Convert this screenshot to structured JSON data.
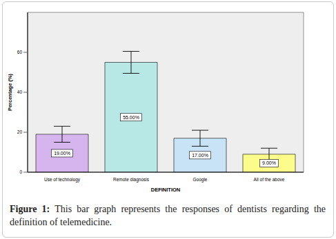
{
  "chart_data": {
    "type": "bar",
    "categories": [
      "Use of technology",
      "Remote diagnosis",
      "Google",
      "All of the above"
    ],
    "values": [
      19,
      55,
      17,
      9
    ],
    "value_labels": [
      "19.00%",
      "55.00%",
      "17.00%",
      "9.00%"
    ],
    "errors": [
      4,
      5.5,
      4,
      3
    ],
    "colors": [
      "#d6b4ee",
      "#b7e8e6",
      "#c7e3f5",
      "#fcfc8a"
    ],
    "xlabel": "DEFINITION",
    "ylabel": "Percentage (%)",
    "ylim": [
      0,
      80
    ],
    "yticks": [
      0,
      20,
      40,
      60
    ],
    "grid": false,
    "data_labels": true
  },
  "caption": {
    "label": "Figure 1:",
    "text": "This bar graph represents the responses of dentists regarding the definition of telemedicine."
  }
}
